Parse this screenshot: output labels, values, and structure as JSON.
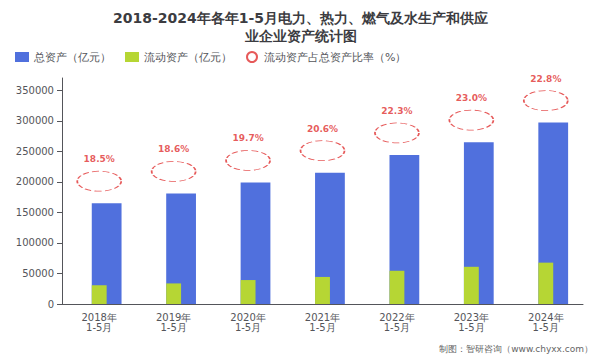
{
  "chart_data": {
    "type": "bar",
    "title": "2018-2024年各年1-5月电力、热力、燃气及水生产和供应\n业企业资产统计图",
    "categories": [
      "2018年\n1-5月",
      "2019年\n1-5月",
      "2020年\n1-5月",
      "2021年\n1-5月",
      "2022年\n1-5月",
      "2023年\n1-5月",
      "2024年\n1-5月"
    ],
    "series": [
      {
        "name": "总资产（亿元）",
        "values": [
          165000,
          181000,
          199000,
          215000,
          244000,
          265000,
          297000
        ]
      },
      {
        "name": "流动资产（亿元）",
        "values": [
          30500,
          33700,
          39200,
          44300,
          54400,
          60900,
          67700
        ]
      },
      {
        "name": "流动资产占总资产比率（%）",
        "type": "scatter",
        "color": "#e03030",
        "data_labels": true,
        "values": [
          18.5,
          18.6,
          19.7,
          20.6,
          22.3,
          23.0,
          22.8
        ],
        "value_labels": [
          "18.5%",
          "18.6%",
          "19.7%",
          "20.6%",
          "22.3%",
          "23.0%",
          "22.8%"
        ]
      }
    ],
    "ylim": [
      0,
      370000
    ],
    "yticks": [
      0,
      50000,
      100000,
      150000,
      200000,
      250000,
      300000,
      350000
    ],
    "grid": false,
    "legend": "upper left",
    "annotations": [
      "制图：智研咨询（www.chyxx.com）"
    ]
  }
}
